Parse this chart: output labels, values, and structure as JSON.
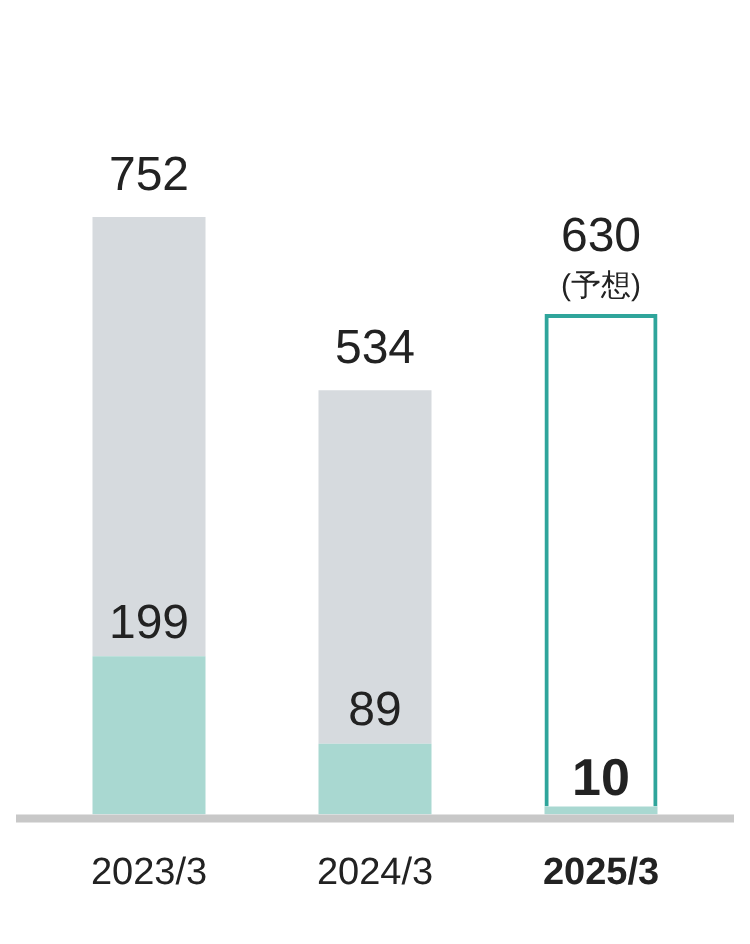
{
  "chart_data": {
    "type": "bar",
    "stacked": true,
    "categories": [
      "2023/3",
      "2024/3",
      "2025/3"
    ],
    "series": [
      {
        "color": "#a9d8d1",
        "colors": [
          "#a9d8d1",
          "#a9d8d1",
          "#a9d8d1"
        ],
        "values": [
          199,
          89,
          10
        ],
        "value_labels": [
          "199",
          "89",
          "10"
        ]
      },
      {
        "color": "#d6dade",
        "colors": [
          "#d6dade",
          "#d6dade",
          "#2fa59b"
        ],
        "values": [
          553,
          445,
          620
        ]
      }
    ],
    "totals": [
      "752",
      "534",
      "630"
    ],
    "annotations": [
      {
        "text": "(予想)",
        "x": "2025/3",
        "y": 630
      }
    ],
    "grid": false,
    "legend": false
  }
}
